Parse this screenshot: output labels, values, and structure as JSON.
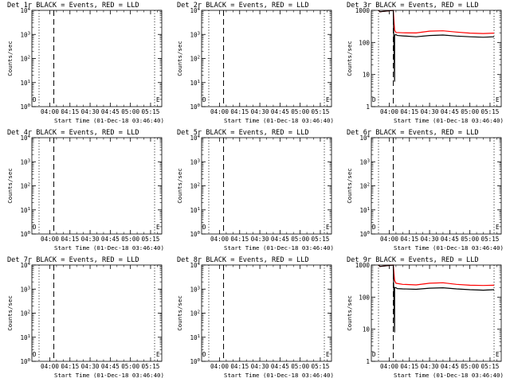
{
  "window": {
    "background": "#ffffff"
  },
  "colors": {
    "events": "#000000",
    "lld": "#ff0000",
    "axis": "#000000"
  },
  "labels": {
    "ylabel": "Counts/sec",
    "xlabel": "Start Time (01-Dec-18 03:46:40)",
    "x_ticks": [
      "04:00",
      "04:15",
      "04:30",
      "04:45",
      "05:00",
      "05:15"
    ],
    "marker_d": "D",
    "marker_e": "E"
  },
  "chart_data": [
    {
      "type": "line",
      "title": "Det 1r BLACK = Events, RED = LLD",
      "yscale": "log",
      "ylim": [
        1,
        10000
      ],
      "y_ticks": [
        {
          "base": "10",
          "exp": "0"
        },
        {
          "base": "10",
          "exp": "1"
        },
        {
          "base": "10",
          "exp": "2"
        },
        {
          "base": "10",
          "exp": "3"
        },
        {
          "base": "10",
          "exp": "4"
        }
      ],
      "series": []
    },
    {
      "type": "line",
      "title": "Det 2r BLACK = Events, RED = LLD",
      "yscale": "log",
      "ylim": [
        1,
        10000
      ],
      "y_ticks": [
        {
          "base": "10",
          "exp": "0"
        },
        {
          "base": "10",
          "exp": "1"
        },
        {
          "base": "10",
          "exp": "2"
        },
        {
          "base": "10",
          "exp": "3"
        },
        {
          "base": "10",
          "exp": "4"
        }
      ],
      "series": []
    },
    {
      "type": "line",
      "title": "Det 3r BLACK = Events, RED = LLD",
      "yscale": "log",
      "ylim": [
        1,
        1000
      ],
      "y_ticks": [
        {
          "base": "1",
          "exp": ""
        },
        {
          "base": "10",
          "exp": ""
        },
        {
          "base": "100",
          "exp": ""
        },
        {
          "base": "1000",
          "exp": ""
        }
      ],
      "series": [
        {
          "color": "#ff0000",
          "x": [
            "03:52",
            "03:53",
            "04:03",
            "04:04",
            "04:05",
            "04:10",
            "04:20",
            "04:30",
            "04:40",
            "04:50",
            "05:00",
            "05:10",
            "05:18"
          ],
          "y": [
            1000,
            900,
            1000,
            240,
            205,
            200,
            198,
            225,
            230,
            210,
            195,
            190,
            195
          ]
        },
        {
          "color": "#000000",
          "x": [
            "03:52",
            "03:53",
            "04:03",
            "04:04",
            "04:04",
            "04:05",
            "04:06",
            "04:10",
            "04:20",
            "04:30",
            "04:40",
            "04:50",
            "05:00",
            "05:10",
            "05:18"
          ],
          "y": [
            1000,
            900,
            1000,
            6,
            170,
            175,
            165,
            160,
            150,
            165,
            170,
            158,
            150,
            145,
            150
          ]
        }
      ]
    },
    {
      "type": "line",
      "title": "Det 4r BLACK = Events, RED = LLD",
      "yscale": "log",
      "ylim": [
        1,
        10000
      ],
      "y_ticks": [
        {
          "base": "10",
          "exp": "0"
        },
        {
          "base": "10",
          "exp": "1"
        },
        {
          "base": "10",
          "exp": "2"
        },
        {
          "base": "10",
          "exp": "3"
        },
        {
          "base": "10",
          "exp": "4"
        }
      ],
      "series": []
    },
    {
      "type": "line",
      "title": "Det 5r BLACK = Events, RED = LLD",
      "yscale": "log",
      "ylim": [
        1,
        10000
      ],
      "y_ticks": [
        {
          "base": "10",
          "exp": "0"
        },
        {
          "base": "10",
          "exp": "1"
        },
        {
          "base": "10",
          "exp": "2"
        },
        {
          "base": "10",
          "exp": "3"
        },
        {
          "base": "10",
          "exp": "4"
        }
      ],
      "series": []
    },
    {
      "type": "line",
      "title": "Det 6r BLACK = Events, RED = LLD",
      "yscale": "log",
      "ylim": [
        1,
        10000
      ],
      "y_ticks": [
        {
          "base": "10",
          "exp": "0"
        },
        {
          "base": "10",
          "exp": "1"
        },
        {
          "base": "10",
          "exp": "2"
        },
        {
          "base": "10",
          "exp": "3"
        },
        {
          "base": "10",
          "exp": "4"
        }
      ],
      "series": []
    },
    {
      "type": "line",
      "title": "Det 7r BLACK = Events, RED = LLD",
      "yscale": "log",
      "ylim": [
        1,
        10000
      ],
      "y_ticks": [
        {
          "base": "10",
          "exp": "0"
        },
        {
          "base": "10",
          "exp": "1"
        },
        {
          "base": "10",
          "exp": "2"
        },
        {
          "base": "10",
          "exp": "3"
        },
        {
          "base": "10",
          "exp": "4"
        }
      ],
      "series": []
    },
    {
      "type": "line",
      "title": "Det 8r BLACK = Events, RED = LLD",
      "yscale": "log",
      "ylim": [
        1,
        10000
      ],
      "y_ticks": [
        {
          "base": "10",
          "exp": "0"
        },
        {
          "base": "10",
          "exp": "1"
        },
        {
          "base": "10",
          "exp": "2"
        },
        {
          "base": "10",
          "exp": "3"
        },
        {
          "base": "10",
          "exp": "4"
        }
      ],
      "series": []
    },
    {
      "type": "line",
      "title": "Det 9r BLACK = Events, RED = LLD",
      "yscale": "log",
      "ylim": [
        1,
        1000
      ],
      "y_ticks": [
        {
          "base": "1",
          "exp": ""
        },
        {
          "base": "10",
          "exp": ""
        },
        {
          "base": "100",
          "exp": ""
        },
        {
          "base": "1000",
          "exp": ""
        }
      ],
      "series": [
        {
          "color": "#ff0000",
          "x": [
            "03:52",
            "03:53",
            "04:03",
            "04:04",
            "04:05",
            "04:10",
            "04:20",
            "04:30",
            "04:40",
            "04:50",
            "05:00",
            "05:10",
            "05:18"
          ],
          "y": [
            1000,
            900,
            1000,
            330,
            270,
            250,
            240,
            270,
            280,
            250,
            235,
            230,
            235
          ]
        },
        {
          "color": "#000000",
          "x": [
            "03:52",
            "03:53",
            "04:03",
            "04:04",
            "04:04",
            "04:05",
            "04:06",
            "04:10",
            "04:20",
            "04:30",
            "04:40",
            "04:50",
            "05:00",
            "05:10",
            "05:18"
          ],
          "y": [
            1000,
            900,
            1000,
            8,
            200,
            195,
            185,
            180,
            175,
            190,
            195,
            180,
            170,
            165,
            170
          ]
        }
      ]
    }
  ]
}
